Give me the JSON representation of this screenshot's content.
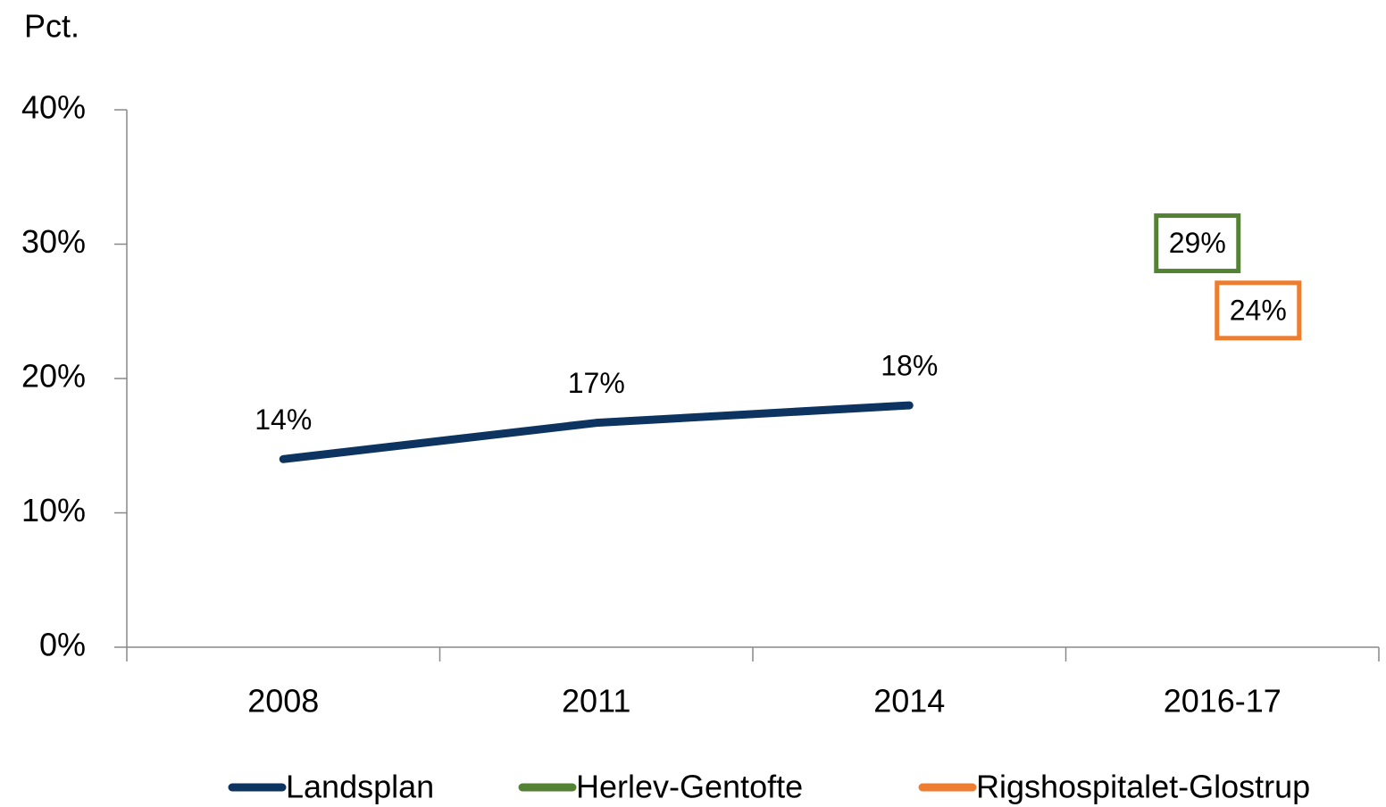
{
  "chart_data": {
    "type": "line",
    "y_label": "Pct.",
    "categories": [
      "2008",
      "2011",
      "2014",
      "2016-17"
    ],
    "series": [
      {
        "name": "Landsplan",
        "color": "#0d3461",
        "values": [
          14,
          16.7,
          18,
          null
        ],
        "value_labels": [
          "14%",
          "17%",
          "18%",
          null
        ]
      },
      {
        "name": "Herlev-Gentofte",
        "color": "#548235",
        "values": [
          null,
          null,
          null,
          29
        ],
        "value_labels": [
          null,
          null,
          null,
          "29%"
        ]
      },
      {
        "name": "Rigshospitalet-Glostrup",
        "color": "#ed7d31",
        "values": [
          null,
          null,
          null,
          24
        ],
        "value_labels": [
          null,
          null,
          null,
          "24%"
        ]
      }
    ],
    "ylim": [
      0,
      40
    ],
    "yticks": [
      {
        "value": 0,
        "label": "0%"
      },
      {
        "value": 10,
        "label": "10%"
      },
      {
        "value": 20,
        "label": "20%"
      },
      {
        "value": 30,
        "label": "30%"
      },
      {
        "value": 40,
        "label": "40%"
      }
    ],
    "legend": "bottom"
  }
}
